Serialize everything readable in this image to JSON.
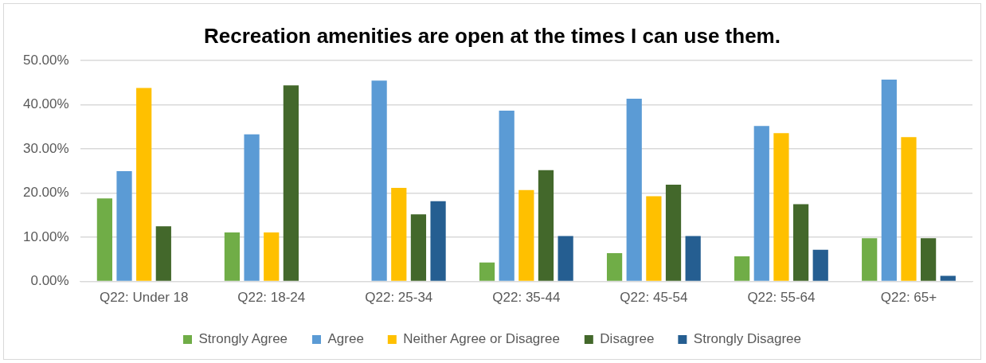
{
  "chart_data": {
    "type": "bar",
    "title": "Recreation amenities are open at the times I can use them.",
    "categories": [
      "Q22: Under 18",
      "Q22: 18-24",
      "Q22: 25-34",
      "Q22: 35-44",
      "Q22: 45-54",
      "Q22: 55-64",
      "Q22: 65+"
    ],
    "series": [
      {
        "name": "Strongly Agree",
        "color": "#70ad47",
        "values": [
          18.8,
          11.1,
          0,
          4.3,
          6.4,
          5.7,
          9.8
        ]
      },
      {
        "name": "Agree",
        "color": "#5b9bd5",
        "values": [
          25,
          33.3,
          45.5,
          38.7,
          41.4,
          35.2,
          45.7
        ]
      },
      {
        "name": "Neither Agree or Disagree",
        "color": "#ffc000",
        "values": [
          43.8,
          11.1,
          21.2,
          20.7,
          19.3,
          33.6,
          32.7
        ]
      },
      {
        "name": "Disagree",
        "color": "#43682b",
        "values": [
          12.5,
          44.4,
          15.2,
          25.2,
          21.9,
          17.5,
          9.8
        ]
      },
      {
        "name": "Strongly Disagree",
        "color": "#255e91",
        "values": [
          0,
          0,
          18.2,
          10.3,
          10.3,
          7.2,
          1.3
        ]
      }
    ],
    "ylim": [
      0,
      50
    ],
    "yticks": [
      {
        "value": 0,
        "label": "0.00%"
      },
      {
        "value": 10,
        "label": "10.00%"
      },
      {
        "value": 20,
        "label": "20.00%"
      },
      {
        "value": 30,
        "label": "30.00%"
      },
      {
        "value": 40,
        "label": "40.00%"
      },
      {
        "value": 50,
        "label": "50.00%"
      }
    ],
    "grid": "y",
    "legend": "bottom"
  }
}
